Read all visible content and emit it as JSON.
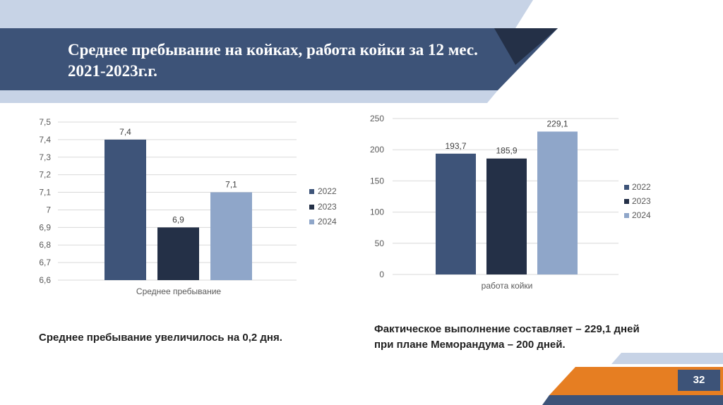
{
  "slide": {
    "title": "Среднее пребывание на койках, работа койки за 12 мес. 2021-2023г.г.",
    "page_number": "32",
    "caption_left": "Среднее пребывание увеличилось на 0,2 дня.",
    "caption_right": "Фактическое выполнение составляет – 229,1 дней при плане Меморандума – 200 дней."
  },
  "colors": {
    "series_2022": "#3e5479",
    "series_2023": "#243047",
    "series_2024": "#8fa6c9",
    "banner": "#3d5378",
    "banner_light": "#c7d3e6",
    "accent_orange": "#e67e22"
  },
  "chart_data": [
    {
      "type": "bar",
      "categories": [
        "Среднее пребывание"
      ],
      "series": [
        {
          "name": "2022",
          "values": [
            7.4
          ],
          "label": "7,4"
        },
        {
          "name": "2023",
          "values": [
            6.9
          ],
          "label": "6,9"
        },
        {
          "name": "2024",
          "values": [
            7.1
          ],
          "label": "7,1"
        }
      ],
      "yticks": [
        "6,6",
        "6,7",
        "6,8",
        "6,9",
        "7",
        "7,1",
        "7,2",
        "7,3",
        "7,4",
        "7,5"
      ],
      "ylim": [
        6.6,
        7.5
      ],
      "grid": true,
      "legend": "right"
    },
    {
      "type": "bar",
      "categories": [
        "работа койки"
      ],
      "series": [
        {
          "name": "2022",
          "values": [
            193.7
          ],
          "label": "193,7"
        },
        {
          "name": "2023",
          "values": [
            185.9
          ],
          "label": "185,9"
        },
        {
          "name": "2024",
          "values": [
            229.1
          ],
          "label": "229,1"
        }
      ],
      "yticks": [
        "0",
        "50",
        "100",
        "150",
        "200",
        "250"
      ],
      "ylim": [
        0,
        250
      ],
      "grid": true,
      "legend": "right"
    }
  ]
}
